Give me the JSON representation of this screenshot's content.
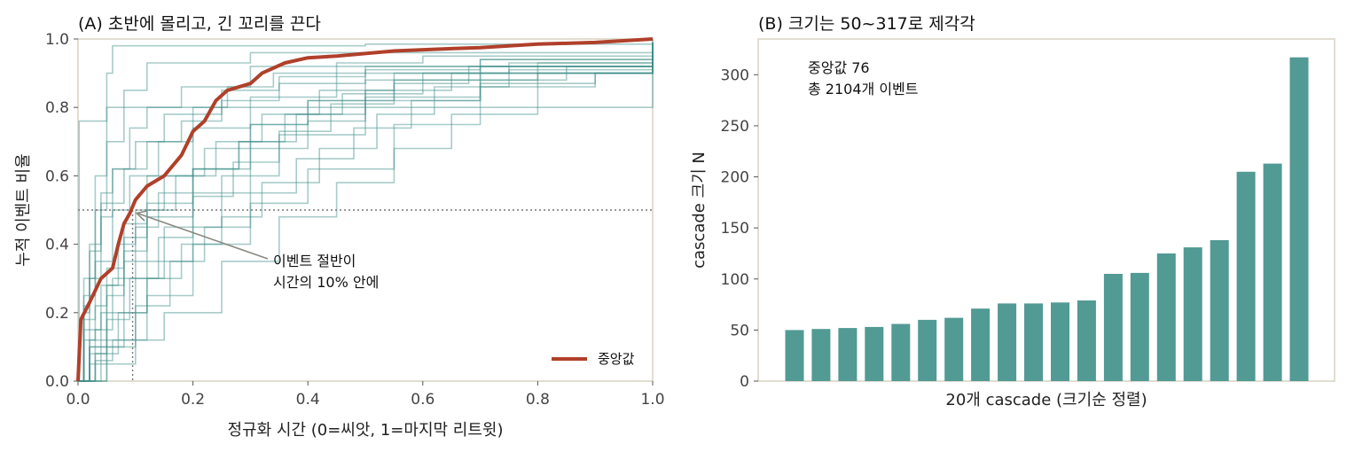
{
  "colors": {
    "frame": "#d8d2c2",
    "cascade_line": "#3e8e8a",
    "median_line": "#b0402a",
    "bar": "#529a94",
    "reference_line": "#777777",
    "arrow": "#8a8a80"
  },
  "panel_a": {
    "title": "(A) 초반에 몰리고, 긴 꼬리를 끈다",
    "xlabel": "정규화 시간  (0=씨앗, 1=마지막 리트윗)",
    "ylabel": "누적 이벤트 비율",
    "annotation_lines": [
      "이벤트 절반이",
      "시간의 10% 안에"
    ],
    "legend_label": "중앙값"
  },
  "panel_b": {
    "title": "(B) 크기는 50~317로 제각각",
    "xlabel": "20개 cascade (크기순 정렬)",
    "ylabel": "cascade 크기 N",
    "summary_lines": [
      "중앙값 76",
      "총 2104개 이벤트"
    ]
  },
  "chart_data": [
    {
      "type": "line",
      "title": "(A) 초반에 몰리고, 긴 꼬리를 끈다",
      "xlabel": "정규화 시간  (0=씨앗, 1=마지막 리트윗)",
      "ylabel": "누적 이벤트 비율",
      "xlim": [
        0,
        1
      ],
      "ylim": [
        0,
        1
      ],
      "xticks": [
        "0.0",
        "0.2",
        "0.4",
        "0.6",
        "0.8",
        "1.0"
      ],
      "yticks": [
        "0.0",
        "0.2",
        "0.4",
        "0.6",
        "0.8",
        "1.0"
      ],
      "grid": false,
      "legend_position": "bottom-right",
      "reference_lines": {
        "y": 0.5,
        "x": 0.095
      },
      "annotation": {
        "text": "이벤트 절반이 시간의 10% 안에",
        "points_to": [
          0.095,
          0.5
        ]
      },
      "series": [
        {
          "name": "중앙값",
          "role": "median",
          "x": [
            0,
            0.005,
            0.02,
            0.04,
            0.06,
            0.07,
            0.08,
            0.09,
            0.1,
            0.12,
            0.15,
            0.18,
            0.2,
            0.22,
            0.24,
            0.26,
            0.3,
            0.32,
            0.36,
            0.4,
            0.45,
            0.55,
            0.62,
            0.7,
            0.8,
            0.9,
            1.0
          ],
          "y": [
            0,
            0.18,
            0.23,
            0.3,
            0.33,
            0.4,
            0.46,
            0.49,
            0.53,
            0.57,
            0.6,
            0.66,
            0.73,
            0.76,
            0.82,
            0.85,
            0.87,
            0.9,
            0.93,
            0.945,
            0.95,
            0.965,
            0.97,
            0.975,
            0.985,
            0.99,
            1.0
          ]
        },
        {
          "role": "cascade",
          "x": [
            0,
            0.002,
            0.05,
            1.0
          ],
          "y": [
            0,
            0.76,
            0.8,
            0.99
          ]
        },
        {
          "role": "cascade",
          "x": [
            0,
            0.01,
            0.03,
            0.05,
            0.06,
            0.5,
            1.0
          ],
          "y": [
            0,
            0.3,
            0.6,
            0.9,
            0.98,
            0.985,
            1.0
          ]
        },
        {
          "role": "cascade",
          "x": [
            0,
            0.01,
            0.03,
            0.05,
            0.08,
            0.12,
            0.3,
            1.0
          ],
          "y": [
            0,
            0.25,
            0.5,
            0.7,
            0.85,
            0.93,
            0.96,
            0.99
          ]
        },
        {
          "role": "cascade",
          "x": [
            0,
            0.01,
            0.02,
            0.04,
            0.06,
            0.09,
            0.12,
            0.18,
            0.3,
            1.0
          ],
          "y": [
            0,
            0.15,
            0.3,
            0.48,
            0.62,
            0.74,
            0.8,
            0.86,
            0.92,
            0.99
          ]
        },
        {
          "role": "cascade",
          "x": [
            0,
            0.01,
            0.03,
            0.05,
            0.08,
            0.12,
            0.2,
            0.3,
            0.45,
            1.0
          ],
          "y": [
            0,
            0.12,
            0.22,
            0.33,
            0.46,
            0.6,
            0.74,
            0.83,
            0.9,
            0.99
          ]
        },
        {
          "role": "cascade",
          "x": [
            0,
            0.02,
            0.04,
            0.08,
            0.12,
            0.2,
            0.3,
            0.4,
            0.5,
            0.7,
            1.0
          ],
          "y": [
            0,
            0.1,
            0.2,
            0.35,
            0.48,
            0.62,
            0.75,
            0.82,
            0.88,
            0.92,
            0.98
          ]
        },
        {
          "role": "cascade",
          "x": [
            0,
            0.02,
            0.05,
            0.1,
            0.15,
            0.25,
            0.35,
            0.5,
            0.7,
            1.0
          ],
          "y": [
            0,
            0.05,
            0.12,
            0.3,
            0.45,
            0.6,
            0.72,
            0.83,
            0.9,
            0.97
          ]
        },
        {
          "role": "cascade",
          "x": [
            0,
            0.03,
            0.06,
            0.12,
            0.2,
            0.3,
            0.4,
            0.55,
            0.7,
            0.8,
            1.0
          ],
          "y": [
            0,
            0.06,
            0.12,
            0.25,
            0.4,
            0.52,
            0.62,
            0.75,
            0.86,
            0.9,
            0.97
          ]
        },
        {
          "role": "cascade",
          "x": [
            0,
            0.05,
            0.1,
            0.15,
            0.25,
            0.35,
            0.45,
            0.55,
            0.65,
            0.8,
            0.9,
            1.0
          ],
          "y": [
            0,
            0.05,
            0.12,
            0.2,
            0.35,
            0.48,
            0.58,
            0.68,
            0.78,
            0.86,
            0.9,
            0.96
          ]
        },
        {
          "role": "cascade",
          "x": [
            0,
            0.03,
            0.07,
            0.12,
            0.2,
            0.3,
            0.4,
            0.5,
            0.7,
            0.9,
            1.0
          ],
          "y": [
            0,
            0.08,
            0.2,
            0.35,
            0.55,
            0.68,
            0.76,
            0.82,
            0.87,
            0.9,
            0.98
          ]
        },
        {
          "role": "cascade",
          "x": [
            0,
            0.01,
            0.02,
            0.04,
            0.06,
            0.1,
            0.15,
            0.25,
            0.35,
            0.5,
            1.0
          ],
          "y": [
            0,
            0.2,
            0.4,
            0.55,
            0.62,
            0.7,
            0.78,
            0.85,
            0.89,
            0.92,
            0.98
          ]
        },
        {
          "role": "cascade",
          "x": [
            0,
            0.02,
            0.05,
            0.08,
            0.12,
            0.2,
            0.28,
            0.38,
            0.5,
            0.65,
            1.0
          ],
          "y": [
            0,
            0.12,
            0.28,
            0.42,
            0.52,
            0.62,
            0.7,
            0.78,
            0.85,
            0.9,
            0.98
          ]
        },
        {
          "role": "cascade",
          "x": [
            0,
            0.04,
            0.08,
            0.12,
            0.18,
            0.25,
            0.32,
            0.42,
            0.52,
            0.62,
            0.75,
            1.0
          ],
          "y": [
            0,
            0.1,
            0.2,
            0.3,
            0.4,
            0.48,
            0.58,
            0.68,
            0.78,
            0.86,
            0.91,
            0.98
          ]
        },
        {
          "role": "cascade",
          "x": [
            0,
            0.01,
            0.03,
            0.06,
            0.09,
            0.14,
            0.2,
            0.26,
            0.34,
            0.45,
            0.6,
            1.0
          ],
          "y": [
            0,
            0.18,
            0.35,
            0.5,
            0.6,
            0.7,
            0.8,
            0.86,
            0.9,
            0.93,
            0.95,
            0.99
          ]
        },
        {
          "role": "cascade",
          "x": [
            0,
            0.02,
            0.04,
            0.07,
            0.1,
            0.15,
            0.22,
            0.3,
            0.4,
            0.55,
            0.8,
            1.0
          ],
          "y": [
            0,
            0.15,
            0.28,
            0.4,
            0.5,
            0.6,
            0.68,
            0.75,
            0.82,
            0.88,
            0.93,
            0.98
          ]
        },
        {
          "role": "cascade",
          "x": [
            0,
            0.03,
            0.06,
            0.1,
            0.14,
            0.2,
            0.28,
            0.36,
            0.46,
            0.6,
            0.75,
            1.0
          ],
          "y": [
            0,
            0.15,
            0.3,
            0.45,
            0.55,
            0.62,
            0.7,
            0.78,
            0.84,
            0.9,
            0.93,
            0.99
          ]
        },
        {
          "role": "cascade",
          "x": [
            0,
            0.02,
            0.05,
            0.08,
            0.12,
            0.17,
            0.24,
            0.32,
            0.42,
            0.55,
            0.7,
            1.0
          ],
          "y": [
            0,
            0.1,
            0.25,
            0.38,
            0.5,
            0.6,
            0.7,
            0.78,
            0.85,
            0.9,
            0.94,
            0.99
          ]
        },
        {
          "role": "cascade",
          "x": [
            0,
            0.05,
            0.1,
            0.16,
            0.22,
            0.3,
            0.38,
            0.48,
            0.58,
            0.7,
            0.85,
            1.0
          ],
          "y": [
            0,
            0.1,
            0.22,
            0.35,
            0.45,
            0.55,
            0.65,
            0.74,
            0.82,
            0.88,
            0.92,
            0.98
          ]
        },
        {
          "role": "cascade",
          "x": [
            0,
            0.01,
            0.02,
            0.04,
            0.08,
            0.12,
            0.18,
            0.25,
            0.35,
            0.5,
            0.7,
            1.0
          ],
          "y": [
            0,
            0.22,
            0.38,
            0.52,
            0.62,
            0.7,
            0.76,
            0.82,
            0.87,
            0.91,
            0.94,
            0.99
          ]
        },
        {
          "role": "cascade",
          "x": [
            0,
            0.02,
            0.05,
            0.09,
            0.14,
            0.2,
            0.27,
            0.35,
            0.44,
            0.55,
            0.68,
            1.0
          ],
          "y": [
            0,
            0.08,
            0.18,
            0.3,
            0.42,
            0.54,
            0.64,
            0.73,
            0.81,
            0.87,
            0.92,
            0.98
          ]
        }
      ]
    },
    {
      "type": "bar",
      "title": "(B) 크기는 50~317로 제각각",
      "xlabel": "20개 cascade (크기순 정렬)",
      "ylabel": "cascade 크기 N",
      "ylim": [
        0,
        335
      ],
      "yticks": [
        "0",
        "50",
        "100",
        "150",
        "200",
        "250",
        "300"
      ],
      "grid": false,
      "values": [
        50,
        51,
        52,
        53,
        56,
        60,
        62,
        71,
        76,
        76,
        77,
        79,
        105,
        106,
        125,
        131,
        138,
        205,
        213,
        317
      ]
    }
  ]
}
